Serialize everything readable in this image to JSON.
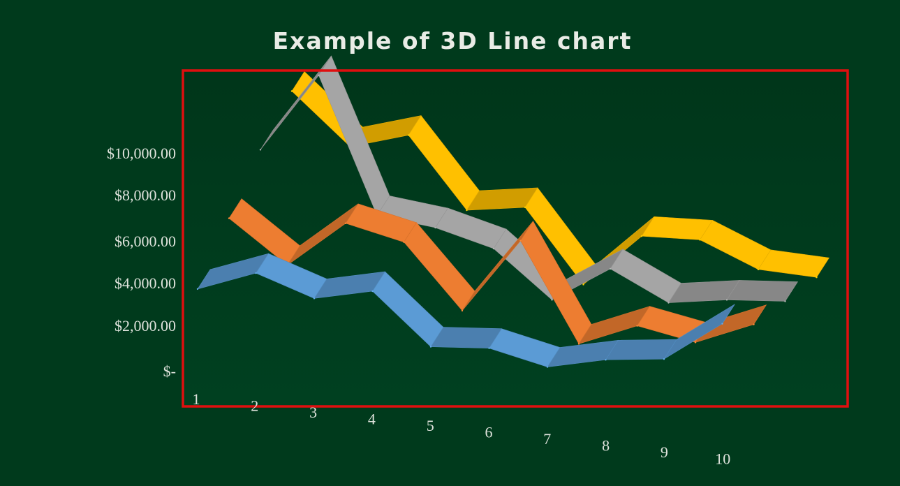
{
  "chart_data": {
    "type": "line",
    "title": "Example of 3D Line chart",
    "categories": [
      "1",
      "2",
      "3",
      "4",
      "5",
      "6",
      "7",
      "8",
      "9",
      "10"
    ],
    "y_tick_labels": [
      "$-",
      "$2,000.00",
      "$4,000.00",
      "$6,000.00",
      "$8,000.00",
      "$10,000.00"
    ],
    "ylim": [
      0,
      10000
    ],
    "grid": false,
    "legend": "none",
    "series": [
      {
        "color": "#5b9bd5",
        "values": [
          3100,
          4000,
          3000,
          3500,
          1100,
          1200,
          500,
          1000,
          1200,
          3000
        ]
      },
      {
        "color": "#ed7d31",
        "values": [
          5400,
          3400,
          5500,
          4800,
          1800,
          5200,
          600,
          1600,
          1000,
          2000
        ]
      },
      {
        "color": "#a5a5a5",
        "values": [
          7600,
          11200,
          4900,
          4500,
          3700,
          1500,
          3100,
          1700,
          2000,
          2100
        ]
      },
      {
        "color": "#ffc000",
        "values": [
          9500,
          7100,
          7800,
          4500,
          4800,
          1400,
          3800,
          3800,
          2600,
          2400
        ]
      }
    ]
  }
}
